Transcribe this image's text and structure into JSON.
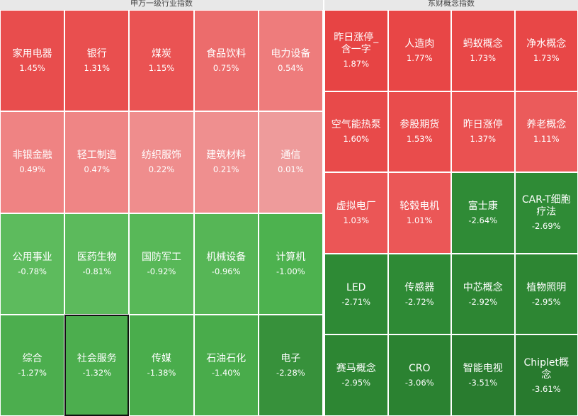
{
  "left": {
    "title": "申万一级行业指数",
    "cols": 5,
    "rows": 4,
    "cells": [
      {
        "name": "家用电器",
        "change": "1.45%",
        "color": "#e84d4d"
      },
      {
        "name": "银行",
        "change": "1.31%",
        "color": "#e94f4f"
      },
      {
        "name": "煤炭",
        "change": "1.15%",
        "color": "#ea5353"
      },
      {
        "name": "食品饮料",
        "change": "0.75%",
        "color": "#ec6c6c"
      },
      {
        "name": "电力设备",
        "change": "0.54%",
        "color": "#ee7c7c"
      },
      {
        "name": "非银金融",
        "change": "0.49%",
        "color": "#ef8383"
      },
      {
        "name": "轻工制造",
        "change": "0.47%",
        "color": "#ef8585"
      },
      {
        "name": "纺织服饰",
        "change": "0.22%",
        "color": "#ef8d8d"
      },
      {
        "name": "建筑材料",
        "change": "0.21%",
        "color": "#ef8f8f"
      },
      {
        "name": "通信",
        "change": "0.01%",
        "color": "#ee9b9b"
      },
      {
        "name": "公用事业",
        "change": "-0.78%",
        "color": "#5dbb5d"
      },
      {
        "name": "医药生物",
        "change": "-0.81%",
        "color": "#5cba5c"
      },
      {
        "name": "国防军工",
        "change": "-0.92%",
        "color": "#58b858"
      },
      {
        "name": "机械设备",
        "change": "-0.96%",
        "color": "#56b656"
      },
      {
        "name": "计算机",
        "change": "-1.00%",
        "color": "#4db24f"
      },
      {
        "name": "综合",
        "change": "-1.27%",
        "color": "#4cae4e"
      },
      {
        "name": "社会服务",
        "change": "-1.32%",
        "color": "#4cae4e"
      },
      {
        "name": "传媒",
        "change": "-1.38%",
        "color": "#4aad4c"
      },
      {
        "name": "石油石化",
        "change": "-1.40%",
        "color": "#49ac4b"
      },
      {
        "name": "电子",
        "change": "-2.28%",
        "color": "#37913b"
      }
    ]
  },
  "right": {
    "title": "东财概念指数",
    "cols": 4,
    "rows": 5,
    "cells": [
      {
        "name": "昨日涨停_含一字",
        "change": "1.87%",
        "color": "#e74444"
      },
      {
        "name": "人造肉",
        "change": "1.77%",
        "color": "#e84646"
      },
      {
        "name": "蚂蚁概念",
        "change": "1.73%",
        "color": "#e84747"
      },
      {
        "name": "净水概念",
        "change": "1.73%",
        "color": "#e84747"
      },
      {
        "name": "空气能热泵",
        "change": "1.60%",
        "color": "#e84a4a"
      },
      {
        "name": "参股期货",
        "change": "1.53%",
        "color": "#e94c4c"
      },
      {
        "name": "昨日涨停",
        "change": "1.37%",
        "color": "#ea5151"
      },
      {
        "name": "养老概念",
        "change": "1.11%",
        "color": "#eb5b5b"
      },
      {
        "name": "虚拟电厂",
        "change": "1.03%",
        "color": "#eb5656"
      },
      {
        "name": "轮毂电机",
        "change": "1.01%",
        "color": "#eb5757"
      },
      {
        "name": "富士康",
        "change": "-2.64%",
        "color": "#2f8b36"
      },
      {
        "name": "CAR-T细胞疗法",
        "change": "-2.69%",
        "color": "#2f8b36"
      },
      {
        "name": "LED",
        "change": "-2.71%",
        "color": "#2e8a35"
      },
      {
        "name": "传感器",
        "change": "-2.72%",
        "color": "#2e8a35"
      },
      {
        "name": "中芯概念",
        "change": "-2.92%",
        "color": "#2d8633"
      },
      {
        "name": "植物照明",
        "change": "-2.95%",
        "color": "#2d8633"
      },
      {
        "name": "赛马概念",
        "change": "-2.95%",
        "color": "#2d8633"
      },
      {
        "name": "CRO",
        "change": "-3.06%",
        "color": "#2b8231"
      },
      {
        "name": "智能电视",
        "change": "-3.51%",
        "color": "#297c2f"
      },
      {
        "name": "Chiplet概念",
        "change": "-3.61%",
        "color": "#287a2e"
      }
    ]
  }
}
